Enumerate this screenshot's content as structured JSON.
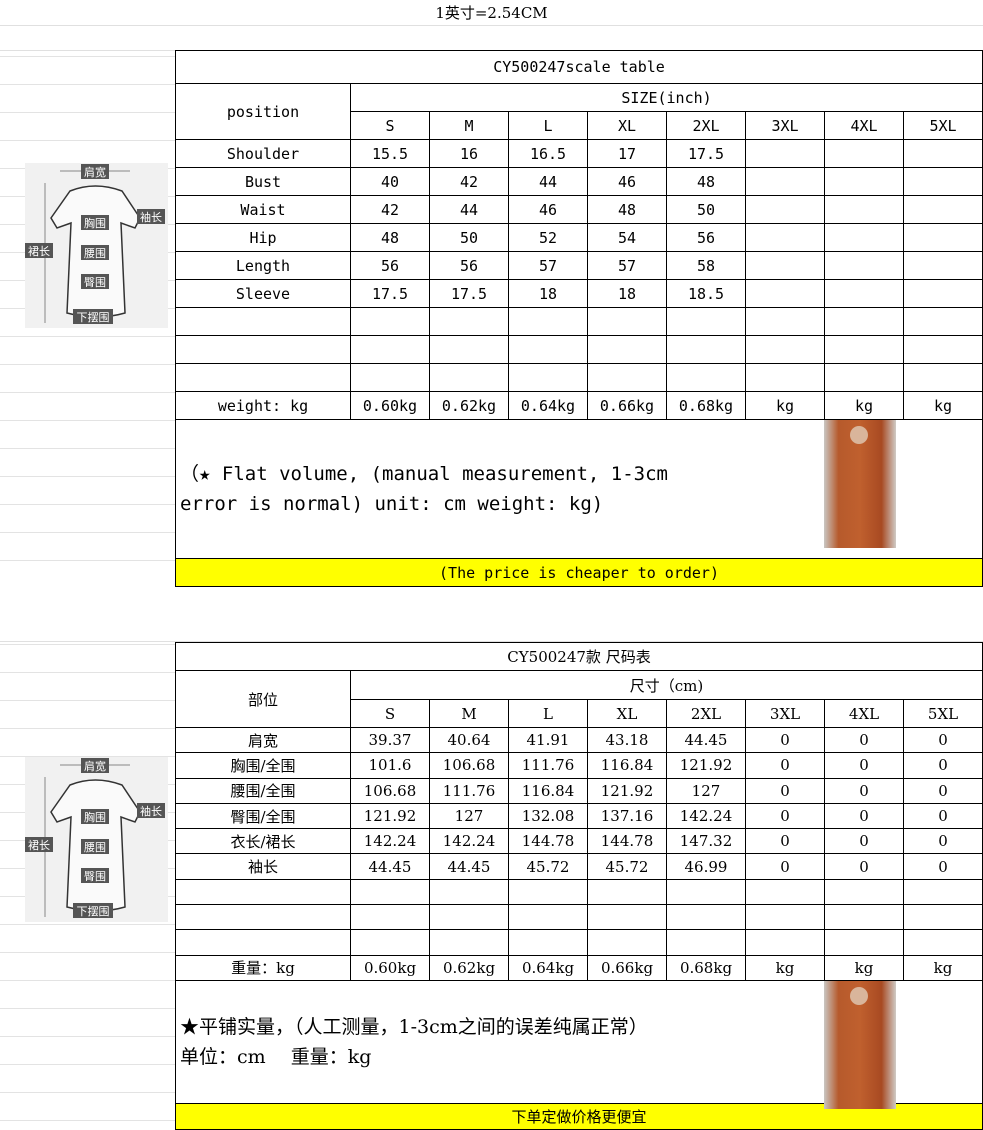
{
  "top_note": "1英寸=2.54CM",
  "diagram_labels": {
    "shoulder": "肩宽",
    "bust": "胸围",
    "sleeve": "袖长",
    "length": "裙长",
    "waist": "腰围",
    "hip": "臀围",
    "hem": "下摆围"
  },
  "table_en": {
    "title": "CY500247scale table",
    "position_header": "position",
    "size_header": "SIZE(inch)",
    "sizes": [
      "S",
      "M",
      "L",
      "XL",
      "2XL",
      "3XL",
      "4XL",
      "5XL"
    ],
    "rows": [
      {
        "label": "Shoulder",
        "values": [
          "15.5",
          "16",
          "16.5",
          "17",
          "17.5",
          "",
          "",
          ""
        ]
      },
      {
        "label": "Bust",
        "values": [
          "40",
          "42",
          "44",
          "46",
          "48",
          "",
          "",
          ""
        ]
      },
      {
        "label": "Waist",
        "values": [
          "42",
          "44",
          "46",
          "48",
          "50",
          "",
          "",
          ""
        ]
      },
      {
        "label": "Hip",
        "values": [
          "48",
          "50",
          "52",
          "54",
          "56",
          "",
          "",
          ""
        ]
      },
      {
        "label": "Length",
        "values": [
          "56",
          "56",
          "57",
          "57",
          "58",
          "",
          "",
          ""
        ]
      },
      {
        "label": "Sleeve",
        "values": [
          "17.5",
          "17.5",
          "18",
          "18",
          "18.5",
          "",
          "",
          ""
        ]
      },
      {
        "label": "",
        "values": [
          "",
          "",
          "",
          "",
          "",
          "",
          "",
          ""
        ]
      },
      {
        "label": "",
        "values": [
          "",
          "",
          "",
          "",
          "",
          "",
          "",
          ""
        ]
      },
      {
        "label": "",
        "values": [
          "",
          "",
          "",
          "",
          "",
          "",
          "",
          ""
        ]
      }
    ],
    "weight_label": "weight: kg",
    "weights": [
      "0.60kg",
      "0.62kg",
      "0.64kg",
      "0.66kg",
      "0.68kg",
      "kg",
      "kg",
      "kg"
    ],
    "note_line1": "（★ Flat volume, (manual measurement, 1-3cm",
    "note_line2": "error is normal) unit: cm weight: kg)",
    "footer": "(The price is cheaper to order)"
  },
  "table_zh": {
    "title": "CY500247款 尺码表",
    "position_header": "部位",
    "size_header": "尺寸（cm)",
    "sizes": [
      "S",
      "M",
      "L",
      "XL",
      "2XL",
      "3XL",
      "4XL",
      "5XL"
    ],
    "rows": [
      {
        "label": "肩宽",
        "values": [
          "39.37",
          "40.64",
          "41.91",
          "43.18",
          "44.45",
          "0",
          "0",
          "0"
        ]
      },
      {
        "label": "胸围/全围",
        "values": [
          "101.6",
          "106.68",
          "111.76",
          "116.84",
          "121.92",
          "0",
          "0",
          "0"
        ]
      },
      {
        "label": "腰围/全围",
        "values": [
          "106.68",
          "111.76",
          "116.84",
          "121.92",
          "127",
          "0",
          "0",
          "0"
        ]
      },
      {
        "label": "臀围/全围",
        "values": [
          "121.92",
          "127",
          "132.08",
          "137.16",
          "142.24",
          "0",
          "0",
          "0"
        ]
      },
      {
        "label": "衣长/裙长",
        "values": [
          "142.24",
          "142.24",
          "144.78",
          "144.78",
          "147.32",
          "0",
          "0",
          "0"
        ]
      },
      {
        "label": "袖长",
        "values": [
          "44.45",
          "44.45",
          "45.72",
          "45.72",
          "46.99",
          "0",
          "0",
          "0"
        ]
      },
      {
        "label": "",
        "values": [
          "",
          "",
          "",
          "",
          "",
          "",
          "",
          ""
        ]
      },
      {
        "label": "",
        "values": [
          "",
          "",
          "",
          "",
          "",
          "",
          "",
          ""
        ]
      },
      {
        "label": "",
        "values": [
          "",
          "",
          "",
          "",
          "",
          "",
          "",
          ""
        ]
      }
    ],
    "weight_label": "重量：kg",
    "weights": [
      "0.60kg",
      "0.62kg",
      "0.64kg",
      "0.66kg",
      "0.68kg",
      "kg",
      "kg",
      "kg"
    ],
    "note_line1": "★平铺实量，（人工测量，1-3cm之间的误差纯属正常）",
    "note_line2": "单位：cm　 重量：kg",
    "footer": "下单定做价格更便宜"
  },
  "colors": {
    "highlight": "#ffff00",
    "dress": "#b65a2c"
  }
}
